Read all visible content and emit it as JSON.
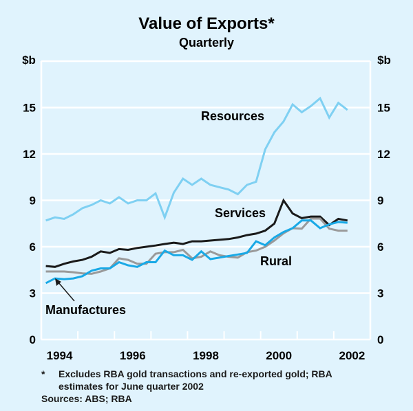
{
  "chart_data": {
    "type": "line",
    "title": "Value of Exports*",
    "subtitle": "Quarterly",
    "ylabel_left": "$b",
    "ylabel_right": "$b",
    "xlabel": "",
    "ylim": [
      0,
      18
    ],
    "yticks": [
      0,
      3,
      6,
      9,
      12,
      15
    ],
    "ytick_labels": [
      "0",
      "3",
      "6",
      "9",
      "12",
      "15"
    ],
    "x_start": "1994 Q1",
    "x_end": "2002 Q2",
    "frequency": "quarterly",
    "xyear_labels": [
      "1994",
      "1996",
      "1998",
      "2000",
      "2002"
    ],
    "xyear_label_years": [
      1994,
      1996,
      1998,
      2000,
      2002
    ],
    "xtick_years": [
      1994,
      1995,
      1996,
      1997,
      1998,
      1999,
      2000,
      2001,
      2002
    ],
    "grid": true,
    "series": [
      {
        "name": "Resources",
        "color": "#7fd0f2",
        "values": [
          7.7,
          7.9,
          7.8,
          8.1,
          8.5,
          8.7,
          9.0,
          8.8,
          9.2,
          8.8,
          9.0,
          9.0,
          9.45,
          7.9,
          9.5,
          10.4,
          10.0,
          10.4,
          10.0,
          9.85,
          9.7,
          9.4,
          10.0,
          10.2,
          12.3,
          13.4,
          14.1,
          15.2,
          14.7,
          15.1,
          15.6,
          14.35,
          15.3,
          14.85
        ]
      },
      {
        "name": "Services",
        "color": "#1a1a1a",
        "values": [
          4.75,
          4.7,
          4.9,
          5.05,
          5.15,
          5.35,
          5.7,
          5.6,
          5.85,
          5.8,
          5.92,
          6.0,
          6.08,
          6.18,
          6.26,
          6.18,
          6.35,
          6.35,
          6.4,
          6.45,
          6.5,
          6.6,
          6.75,
          6.85,
          7.04,
          7.5,
          9.0,
          8.15,
          7.85,
          7.95,
          7.95,
          7.4,
          7.8,
          7.7
        ]
      },
      {
        "name": "Rural",
        "color": "#9a9a9a",
        "values": [
          4.4,
          4.4,
          4.4,
          4.35,
          4.28,
          4.25,
          4.4,
          4.6,
          5.25,
          5.15,
          4.9,
          4.9,
          5.55,
          5.65,
          5.65,
          5.8,
          5.25,
          5.35,
          5.7,
          5.45,
          5.35,
          5.3,
          5.65,
          5.75,
          6.0,
          6.4,
          6.87,
          7.2,
          7.17,
          7.82,
          7.82,
          7.17,
          7.04,
          7.04
        ]
      },
      {
        "name": "Manufactures",
        "color": "#19a9e6",
        "values": [
          3.65,
          3.95,
          3.9,
          3.95,
          4.1,
          4.45,
          4.6,
          4.6,
          5.0,
          4.8,
          4.7,
          5.0,
          5.0,
          5.75,
          5.45,
          5.45,
          5.15,
          5.7,
          5.2,
          5.3,
          5.4,
          5.5,
          5.6,
          6.35,
          6.1,
          6.6,
          6.95,
          7.2,
          7.7,
          7.7,
          7.2,
          7.45,
          7.6,
          7.55
        ]
      }
    ],
    "series_labels": [
      "Resources",
      "Services",
      "Rural",
      "Manufactures"
    ],
    "annotations": [
      {
        "text": "Manufactures",
        "arrow_to_series": "Manufactures",
        "arrow_to_quarter_index": 1
      }
    ],
    "footnote": "Excludes RBA gold transactions and re-exported gold; RBA estimates for June quarter 2002",
    "footnote_marker": "*",
    "footnote_line1": "Excludes RBA gold transactions and re-exported gold; RBA",
    "footnote_line2": "estimates for June quarter 2002",
    "sources": "Sources: ABS; RBA"
  }
}
